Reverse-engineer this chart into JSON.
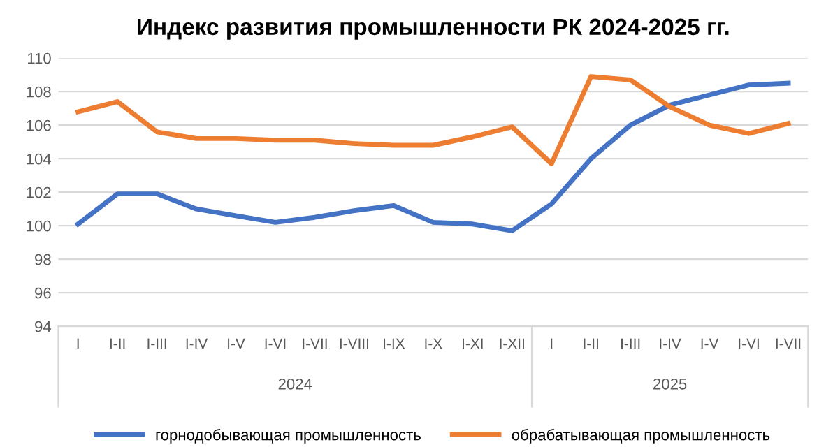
{
  "chart_data": {
    "type": "line",
    "title": "Индекс развития промышленности РК 2024-2025 гг.",
    "categories": [
      "I",
      "I-II",
      "I-III",
      "I-IV",
      "I-V",
      "I-VI",
      "I-VII",
      "I-VIII",
      "I-IX",
      "I-X",
      "I-XI",
      "I-XII",
      "I",
      "I-II",
      "I-III",
      "I-IV",
      "I-V",
      "I-VI",
      "I-VII"
    ],
    "series": [
      {
        "name": "горнодобывающая промышленность",
        "color": "#4472c4",
        "values": [
          100.1,
          101.9,
          101.9,
          101.0,
          100.6,
          100.2,
          100.5,
          100.9,
          101.2,
          100.2,
          100.1,
          99.7,
          101.3,
          104.0,
          106.0,
          107.2,
          107.8,
          108.4,
          108.5
        ]
      },
      {
        "name": "обрабатывающая промышленность",
        "color": "#ed7d31",
        "values": [
          106.8,
          107.4,
          105.6,
          105.2,
          105.2,
          105.1,
          105.1,
          104.9,
          104.8,
          104.8,
          105.3,
          105.9,
          103.7,
          108.9,
          108.7,
          107.1,
          106.0,
          105.5,
          106.1
        ]
      }
    ],
    "annotations": [
      "2024",
      "2025"
    ],
    "ylim": [
      94,
      110
    ],
    "yticks": [
      94,
      96,
      98,
      100,
      102,
      104,
      106,
      108,
      110
    ],
    "grid": "y",
    "legend": "bottom",
    "marker": "none",
    "line_style": "solid"
  }
}
